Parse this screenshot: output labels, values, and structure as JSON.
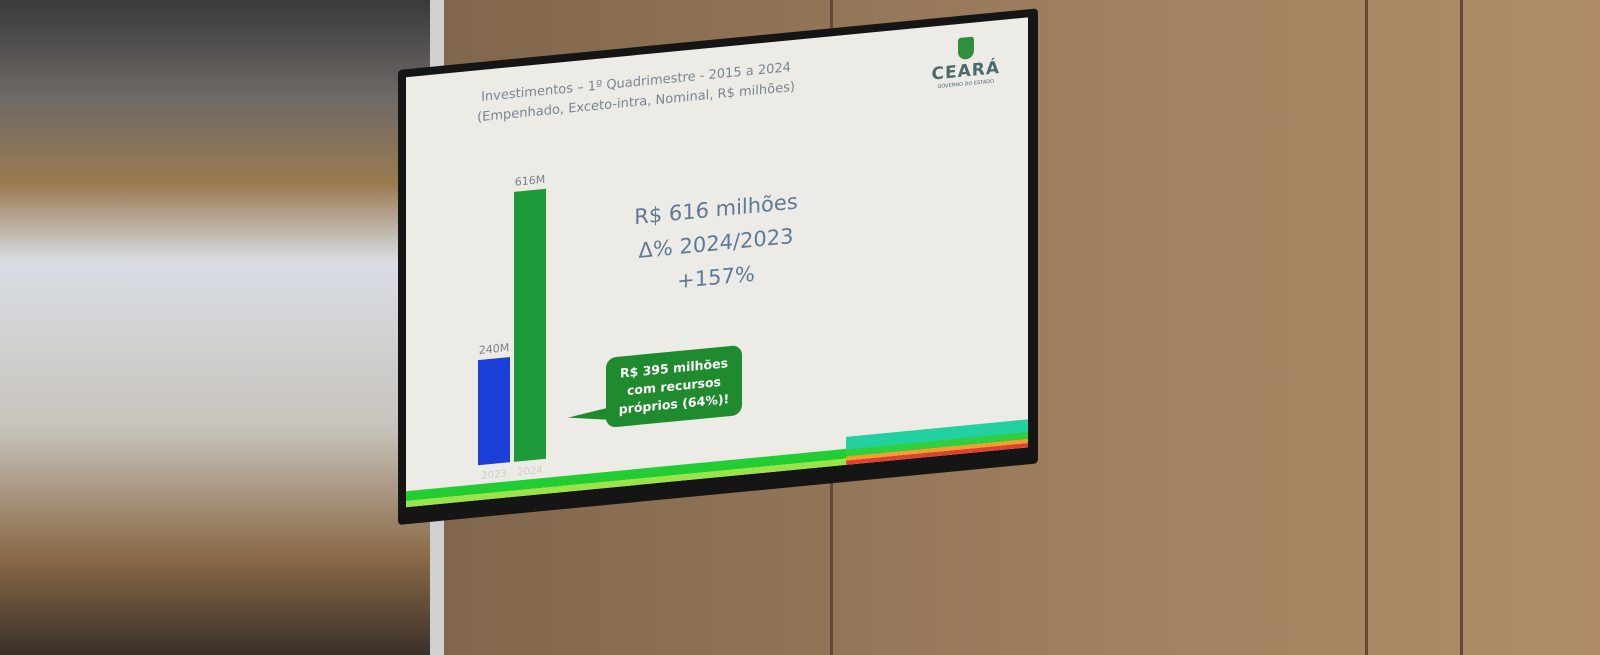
{
  "slide": {
    "title_line1": "Investimentos – 1º Quadrimestre - 2015 a 2024",
    "title_line2": "(Empenhado, Exceto-intra, Nominal, R$ milhões)",
    "logo": {
      "name": "CEARÁ",
      "subtitle": "GOVERNO DO ESTADO"
    },
    "highlight": [
      "R$ 616 milhões",
      "Δ% 2024/2023",
      "+157%"
    ],
    "callout": [
      "R$ 395 milhões",
      "com recursos",
      "próprios (64%)!"
    ]
  },
  "chart_data": {
    "type": "bar",
    "title": "Investimentos – 1º Quadrimestre - 2015 a 2024",
    "subtitle": "(Empenhado, Exceto-intra, Nominal, R$ milhões)",
    "categories": [
      "2023",
      "2024"
    ],
    "values": [
      240,
      616
    ],
    "data_labels": [
      "240M",
      "616M"
    ],
    "colors": [
      "#1a3fd8",
      "#1f9a3a"
    ],
    "grid": false
  },
  "colors": {
    "callout": "#1f8a2e",
    "highlight_text": "#5e7a98"
  }
}
